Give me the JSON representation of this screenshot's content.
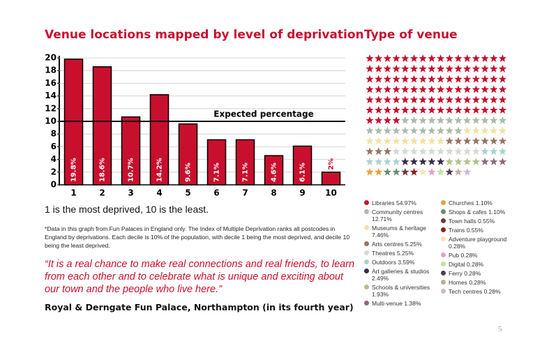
{
  "chart_data": [
    {
      "type": "bar",
      "title": "Venue locations mapped by level of deprivation",
      "categories": [
        "1",
        "2",
        "3",
        "4",
        "5",
        "6",
        "7",
        "8",
        "9",
        "10"
      ],
      "values": [
        19.8,
        18.6,
        10.7,
        14.2,
        9.6,
        7.1,
        7.1,
        4.6,
        6.1,
        2
      ],
      "value_labels": [
        "19.8%",
        "18.6%",
        "10.7%",
        "14.2%",
        "9.6%",
        "7.1%",
        "7.1%",
        "4.6%",
        "6.1%",
        "2%"
      ],
      "color": "#c8102e",
      "ylim": [
        0,
        20
      ],
      "yticks": [
        0,
        2,
        4,
        6,
        8,
        10,
        12,
        14,
        16,
        18,
        20
      ],
      "grid": true,
      "reference_line": {
        "value": 10,
        "label": "Expected percentage"
      }
    },
    {
      "type": "pictogram",
      "title": "Type of venue",
      "categories": [
        "Libraries",
        "Community centres",
        "Museums & heritage",
        "Arts centres",
        "Theatres",
        "Outdoors",
        "Art galleries & studios",
        "Schools & universities",
        "Multi-venue",
        "Churches",
        "Shops & cafes",
        "Town halls",
        "Trains",
        "Adventure playground",
        "Pub",
        "Digital",
        "Ferry",
        "Homes",
        "Tech centres"
      ],
      "values": [
        54.97,
        12.71,
        7.46,
        5.25,
        5.25,
        3.59,
        2.49,
        1.93,
        1.38,
        1.1,
        1.1,
        0.55,
        0.55,
        0.28,
        0.28,
        0.28,
        0.28,
        0.28,
        0.28
      ],
      "value_labels": [
        "54.97%",
        "12.71%",
        "7.46%",
        "5.25%",
        "5.25%",
        "3.59%",
        "2.49%",
        "1.93%",
        "1.38%",
        "1.10%",
        "1.10%",
        "0.55%",
        "0.55%",
        "0.28%",
        "0.28%",
        "0.28%",
        "0.28%",
        "0.28%",
        "0.28%"
      ],
      "colors": [
        "#c8102e",
        "#a9bba9",
        "#f1e2a2",
        "#9a7262",
        "#d3dbd3",
        "#a9d2d0",
        "#3b2b4b",
        "#b2c28a",
        "#8b6b7b",
        "#e8a040",
        "#6b8b71",
        "#6b3b3b",
        "#8b2121",
        "#f1e9b2",
        "#e2a2c2",
        "#c2e292",
        "#4b4151",
        "#c2aa9a",
        "#cabad2"
      ]
    }
  ],
  "caption": "1 is the most deprived, 10 is the least.",
  "footnote": "*Data in this graph from Fun Palaces in England only. The Index of Multiple Deprivation ranks all postcodes in England by deprivations. Each decile is 10% of the population, with decile 1 being the most deprived, and decile 10 being the least deprived.",
  "quote": "“It is a real chance to make real connections and real friends, to learn from each other and to celebrate what is unique and exciting about our town and the people who live here.”",
  "attribution": "Royal & Derngate Fun Palace, Northampton (in its fourth year)",
  "page_number": "5"
}
